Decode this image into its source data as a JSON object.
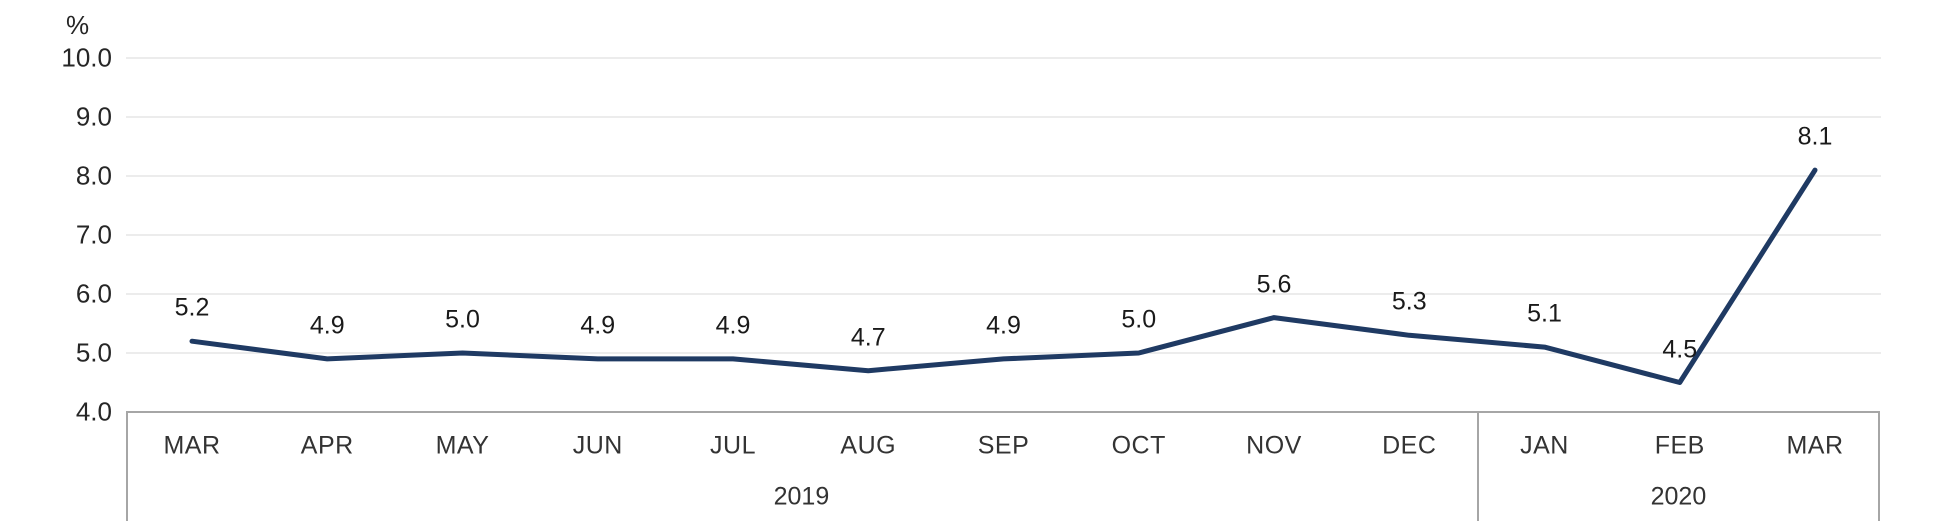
{
  "chart_data": {
    "type": "line",
    "title": "",
    "unit_label": "%",
    "categories": [
      "MAR",
      "APR",
      "MAY",
      "JUN",
      "JUL",
      "AUG",
      "SEP",
      "OCT",
      "NOV",
      "DEC",
      "JAN",
      "FEB",
      "MAR"
    ],
    "series": [
      {
        "name": "",
        "values": [
          5.2,
          4.9,
          5.0,
          4.9,
          4.9,
          4.7,
          4.9,
          5.0,
          5.6,
          5.3,
          5.1,
          4.5,
          8.1
        ]
      }
    ],
    "data_labels": [
      "5.2",
      "4.9",
      "5.0",
      "4.9",
      "4.9",
      "4.7",
      "4.9",
      "5.0",
      "5.6",
      "5.3",
      "5.1",
      "4.5",
      "8.1"
    ],
    "year_groups": [
      {
        "label": "2019",
        "start_index": 0,
        "end_index": 9
      },
      {
        "label": "2020",
        "start_index": 10,
        "end_index": 12
      }
    ],
    "y_ticks": [
      {
        "label": "10.0",
        "value": 10
      },
      {
        "label": "9.0",
        "value": 9
      },
      {
        "label": "8.0",
        "value": 8
      },
      {
        "label": "7.0",
        "value": 7
      },
      {
        "label": "6.0",
        "value": 6
      },
      {
        "label": "5.0",
        "value": 5
      },
      {
        "label": "4.0",
        "value": 4
      }
    ],
    "ylim": [
      4,
      10
    ],
    "xlabel": "",
    "ylabel": "%",
    "grid": true,
    "legend": "none",
    "colors": {
      "line": "#1f3a63",
      "gridline": "#ececec",
      "axis_box_border": "#a6a6a6",
      "text": "#262626"
    }
  }
}
